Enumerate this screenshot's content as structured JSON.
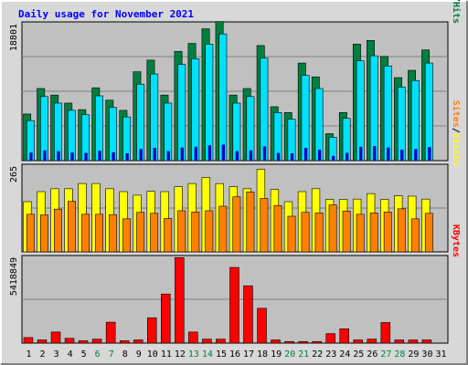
{
  "colors": {
    "background": "#d8d8d8",
    "panel_bg": "#c0c0c0",
    "grid": "#808080",
    "title": "#0000ff",
    "hits": "#008040",
    "files": "#00e0ff",
    "pages": "#0000c0",
    "visits": "#ffff00",
    "sites": "#ff8000",
    "kbytes": "#ff0000",
    "weekday_label": "#000000",
    "weekend_label": "#008040",
    "separator": "#000000"
  },
  "chart_data": {
    "type": "bar",
    "title": "Daily usage for November 2021",
    "categories": [
      "1",
      "2",
      "3",
      "4",
      "5",
      "6",
      "7",
      "8",
      "9",
      "10",
      "11",
      "12",
      "13",
      "14",
      "15",
      "16",
      "17",
      "18",
      "19",
      "20",
      "21",
      "22",
      "23",
      "24",
      "25",
      "26",
      "27",
      "28",
      "29",
      "30",
      "31"
    ],
    "weekend_days": [
      "6",
      "7",
      "13",
      "14",
      "20",
      "21",
      "27",
      "28"
    ],
    "panels": [
      {
        "axis_max_label": "18801",
        "ylim": [
          0,
          18801
        ],
        "legend": [
          {
            "label": "Pages",
            "color_key": "pages"
          },
          {
            "label": "/",
            "color_key": "separator"
          },
          {
            "label": "Files",
            "color_key": "files"
          },
          {
            "label": "/",
            "color_key": "separator"
          },
          {
            "label": "Hits",
            "color_key": "hits"
          }
        ],
        "series": [
          {
            "name": "Hits",
            "color_key": "hits",
            "values": [
              6400,
              9900,
              9000,
              7900,
              7000,
              10000,
              8300,
              6900,
              12200,
              13800,
              9000,
              15000,
              16100,
              18100,
              19100,
              9000,
              9900,
              15800,
              7400,
              6600,
              13400,
              11500,
              3700,
              6600,
              16000,
              16500,
              14300,
              11400,
              12400,
              15200,
              0
            ]
          },
          {
            "name": "Files",
            "color_key": "files",
            "values": [
              5500,
              8800,
              7900,
              6900,
              6300,
              8900,
              7300,
              6000,
              10500,
              11900,
              7900,
              13200,
              14000,
              16000,
              17400,
              7900,
              8800,
              14100,
              6600,
              5700,
              11700,
              9900,
              3200,
              5800,
              13700,
              14400,
              13000,
              10100,
              11000,
              13400,
              0
            ]
          },
          {
            "name": "Pages",
            "color_key": "pages",
            "values": [
              1100,
              1400,
              1300,
              1100,
              1050,
              1350,
              1150,
              1000,
              1600,
              1750,
              1300,
              1800,
              1900,
              2100,
              2200,
              1300,
              1400,
              1950,
              1050,
              1000,
              1750,
              1500,
              650,
              1050,
              1900,
              2000,
              1800,
              1500,
              1600,
              1850,
              0
            ]
          }
        ]
      },
      {
        "axis_max_label": "265",
        "ylim": [
          0,
          265
        ],
        "legend": [
          {
            "label": "Sites",
            "color_key": "sites"
          },
          {
            "label": "/",
            "color_key": "separator"
          },
          {
            "label": "Visits",
            "color_key": "visits"
          }
        ],
        "series": [
          {
            "name": "Visits",
            "color_key": "visits",
            "values": [
              155,
              186,
              195,
              195,
              211,
              211,
              195,
              186,
              175,
              187,
              186,
              201,
              211,
              230,
              211,
              201,
              195,
              255,
              193,
              155,
              186,
              195,
              162,
              162,
              163,
              180,
              162,
              173,
              172,
              163,
              0
            ]
          },
          {
            "name": "Sites",
            "color_key": "sites",
            "values": [
              116,
              114,
              132,
              156,
              116,
              116,
              115,
              102,
              122,
              119,
              103,
              127,
              123,
              127,
              141,
              170,
              185,
              165,
              143,
              110,
              122,
              120,
              145,
              126,
              116,
              120,
              123,
              133,
              102,
              119,
              0
            ]
          }
        ]
      },
      {
        "axis_max_label": "5418849",
        "ylim": [
          0,
          5418849
        ],
        "legend": [
          {
            "label": "KBytes",
            "color_key": "kbytes"
          }
        ],
        "series": [
          {
            "name": "KBytes",
            "color_key": "kbytes",
            "values": [
              350000,
              200000,
              700000,
              300000,
              150000,
              250000,
              1320000,
              150000,
              200000,
              1600000,
              3100000,
              5400000,
              700000,
              250000,
              250000,
              4780000,
              3620000,
              2200000,
              200000,
              100000,
              100000,
              100000,
              600000,
              900000,
              200000,
              250000,
              1300000,
              200000,
              200000,
              200000,
              0
            ]
          }
        ]
      }
    ]
  }
}
